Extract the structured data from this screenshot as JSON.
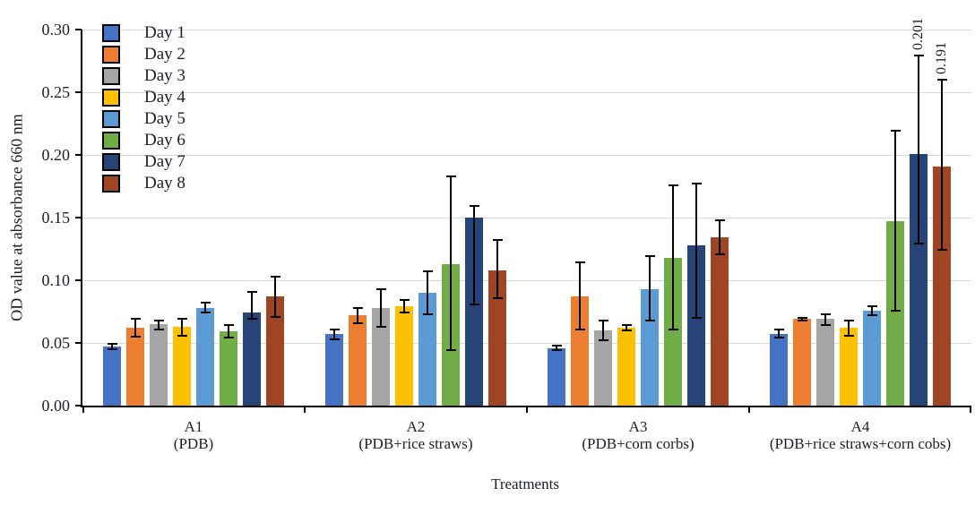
{
  "chart_data": {
    "type": "bar",
    "title": "",
    "xlabel": "Treatments",
    "ylabel": "OD value at absorbance 660 nm",
    "ylim": [
      0,
      0.3
    ],
    "ytick_step": 0.05,
    "yticks": [
      "0.00",
      "0.05",
      "0.10",
      "0.15",
      "0.20",
      "0.25",
      "0.30"
    ],
    "grid": true,
    "legend_position": "top-left-inside",
    "error_bars": true,
    "groups": [
      {
        "label": "A1",
        "sublabel": "(PDB)"
      },
      {
        "label": "A2",
        "sublabel": "(PDB+rice straws)"
      },
      {
        "label": "A3",
        "sublabel": "(PDB+corn corbs)"
      },
      {
        "label": "A4",
        "sublabel": "(PDB+rice straws+corn cobs)"
      }
    ],
    "series": [
      {
        "name": "Day 1",
        "color": "#4472C4",
        "values": [
          0.047,
          0.057,
          0.046,
          0.057
        ],
        "err_hi": [
          0.049,
          0.061,
          0.048,
          0.061
        ],
        "err_lo": [
          0.045,
          0.053,
          0.044,
          0.054
        ]
      },
      {
        "name": "Day 2",
        "color": "#ED7D31",
        "values": [
          0.062,
          0.072,
          0.087,
          0.069
        ],
        "err_hi": [
          0.069,
          0.078,
          0.114,
          0.07
        ],
        "err_lo": [
          0.055,
          0.066,
          0.061,
          0.068
        ]
      },
      {
        "name": "Day 3",
        "color": "#A5A5A5",
        "values": [
          0.065,
          0.078,
          0.06,
          0.069
        ],
        "err_hi": [
          0.068,
          0.093,
          0.068,
          0.073
        ],
        "err_lo": [
          0.061,
          0.063,
          0.052,
          0.064
        ]
      },
      {
        "name": "Day 4",
        "color": "#FFC000",
        "values": [
          0.063,
          0.079,
          0.062,
          0.062
        ],
        "err_hi": [
          0.069,
          0.084,
          0.064,
          0.068
        ],
        "err_lo": [
          0.056,
          0.074,
          0.06,
          0.056
        ]
      },
      {
        "name": "Day 5",
        "color": "#5B9BD5",
        "values": [
          0.078,
          0.09,
          0.093,
          0.076
        ],
        "err_hi": [
          0.082,
          0.107,
          0.119,
          0.079
        ],
        "err_lo": [
          0.074,
          0.073,
          0.068,
          0.072
        ]
      },
      {
        "name": "Day 6",
        "color": "#70AD47",
        "values": [
          0.059,
          0.113,
          0.118,
          0.147
        ],
        "err_hi": [
          0.064,
          0.183,
          0.176,
          0.219
        ],
        "err_lo": [
          0.054,
          0.044,
          0.061,
          0.076
        ]
      },
      {
        "name": "Day 7",
        "color": "#264478",
        "values": [
          0.074,
          0.15,
          0.128,
          0.201
        ],
        "err_hi": [
          0.091,
          0.159,
          0.177,
          0.279
        ],
        "err_lo": [
          0.069,
          0.081,
          0.07,
          0.129
        ]
      },
      {
        "name": "Day 8",
        "color": "#A04524",
        "values": [
          0.087,
          0.108,
          0.134,
          0.191
        ],
        "err_hi": [
          0.103,
          0.132,
          0.148,
          0.26
        ],
        "err_lo": [
          0.071,
          0.086,
          0.121,
          0.124
        ]
      }
    ],
    "annotations": [
      {
        "group_index": 3,
        "series_index": 6,
        "text": "0.201"
      },
      {
        "group_index": 3,
        "series_index": 7,
        "text": "0.191"
      }
    ],
    "colors": {
      "gridline": "#d9d9d9",
      "axis": "#000000",
      "error_bar": "#000000"
    }
  }
}
